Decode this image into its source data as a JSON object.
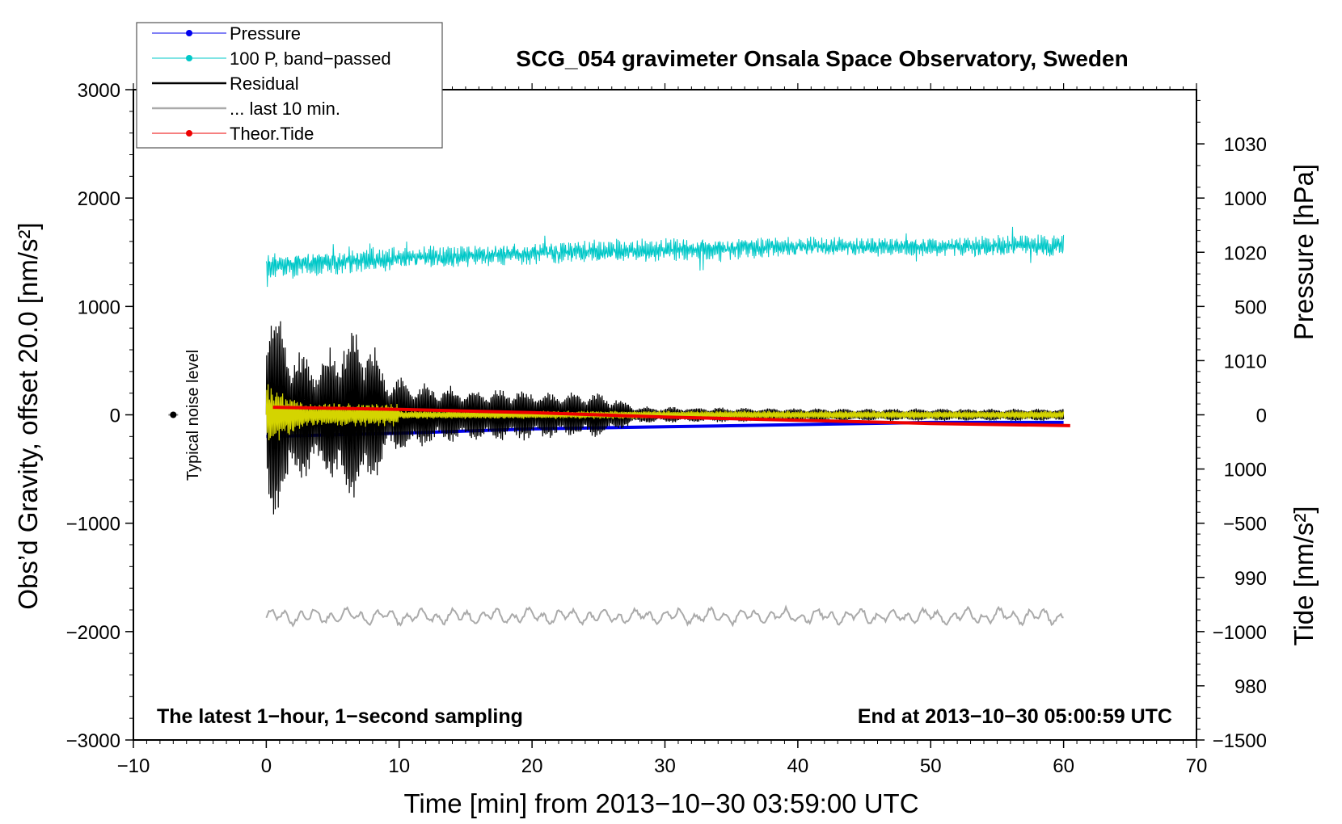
{
  "chart_data": {
    "type": "line",
    "title": "SCG_054 gravimeter Onsala Space Observatory, Sweden",
    "xlabel": "Time [min] from 2013−10−30 03:59:00 UTC",
    "ylabel_left": "Obs’d Gravity, offset 20.0 [nm/s²]",
    "ylabel_right_top": "Pressure [hPa]",
    "ylabel_right_bottom": "Tide [nm/s²]",
    "xlim": [
      -10,
      70
    ],
    "ylim_left": [
      -3000,
      3000
    ],
    "ylim_pressure": [
      975,
      1035
    ],
    "ylim_tide": [
      -1500,
      1500
    ],
    "x_ticks": [
      "−10",
      "0",
      "10",
      "20",
      "30",
      "40",
      "50",
      "60",
      "70"
    ],
    "y_left_ticks": [
      "−3000",
      "−2000",
      "−1000",
      "0",
      "1000",
      "2000",
      "3000"
    ],
    "y_pressure_ticks": [
      "980",
      "990",
      "1000",
      "1010",
      "1020",
      "1030"
    ],
    "y_tide_ticks": [
      "−1500",
      "−1000",
      "−500",
      "0",
      "500",
      "1000"
    ],
    "legend": [
      {
        "label": "Pressure",
        "color": "#0000ee",
        "style": "line-dot"
      },
      {
        "label": "100 P, band−passed",
        "color": "#00c8c8",
        "style": "line-dot"
      },
      {
        "label": "Residual",
        "color": "#000000",
        "style": "line"
      },
      {
        "label": "... last 10 min.",
        "color": "#aaaaaa",
        "style": "line"
      },
      {
        "label": "Theor.Tide",
        "color": "#ee0000",
        "style": "line-dot"
      }
    ],
    "legend_position": "top-left",
    "note_left": "The latest 1−hour, 1−second sampling",
    "note_right": "End at 2013−10−30 05:00:59 UTC",
    "noise_label": "Typical noise level",
    "noise_marker": {
      "x": -7,
      "y": 0,
      "err": 60
    },
    "series": [
      {
        "name": "Pressure",
        "axis": "pressure",
        "color": "#0000ee",
        "x": [
          0,
          10,
          20,
          30,
          40,
          50,
          60
        ],
        "y": [
          1003.0,
          1003.3,
          1003.7,
          1003.9,
          1004.1,
          1004.3,
          1004.3
        ]
      },
      {
        "name": "100 P, band−passed",
        "axis": "left",
        "color": "#00c8c8",
        "x": [
          0,
          10,
          20,
          30,
          40,
          50,
          60
        ],
        "center": [
          1380,
          1440,
          1490,
          1520,
          1550,
          1550,
          1560
        ],
        "amplitude": [
          120,
          110,
          100,
          120,
          90,
          90,
          110
        ]
      },
      {
        "name": "Residual",
        "axis": "left",
        "color": "#000000",
        "x": [
          0,
          0.3,
          2,
          4,
          6,
          7.5,
          9,
          12,
          15,
          18,
          22,
          25,
          28,
          35,
          45,
          55,
          60
        ],
        "amplitude": [
          1200,
          1150,
          650,
          550,
          800,
          820,
          400,
          300,
          250,
          250,
          220,
          220,
          80,
          70,
          60,
          60,
          60
        ]
      },
      {
        "name": "... last 10 min.",
        "axis": "left",
        "color": "#aaaaaa",
        "x": [
          0,
          60
        ],
        "center": [
          -1860,
          -1860
        ],
        "amplitude": [
          60,
          60
        ]
      },
      {
        "name": "Theor.Tide",
        "axis": "tide",
        "color": "#ee0000",
        "x": [
          0.5,
          10,
          20,
          30,
          40,
          50,
          60.5
        ],
        "y": [
          35,
          25,
          10,
          -10,
          -25,
          -40,
          -50
        ]
      }
    ]
  }
}
